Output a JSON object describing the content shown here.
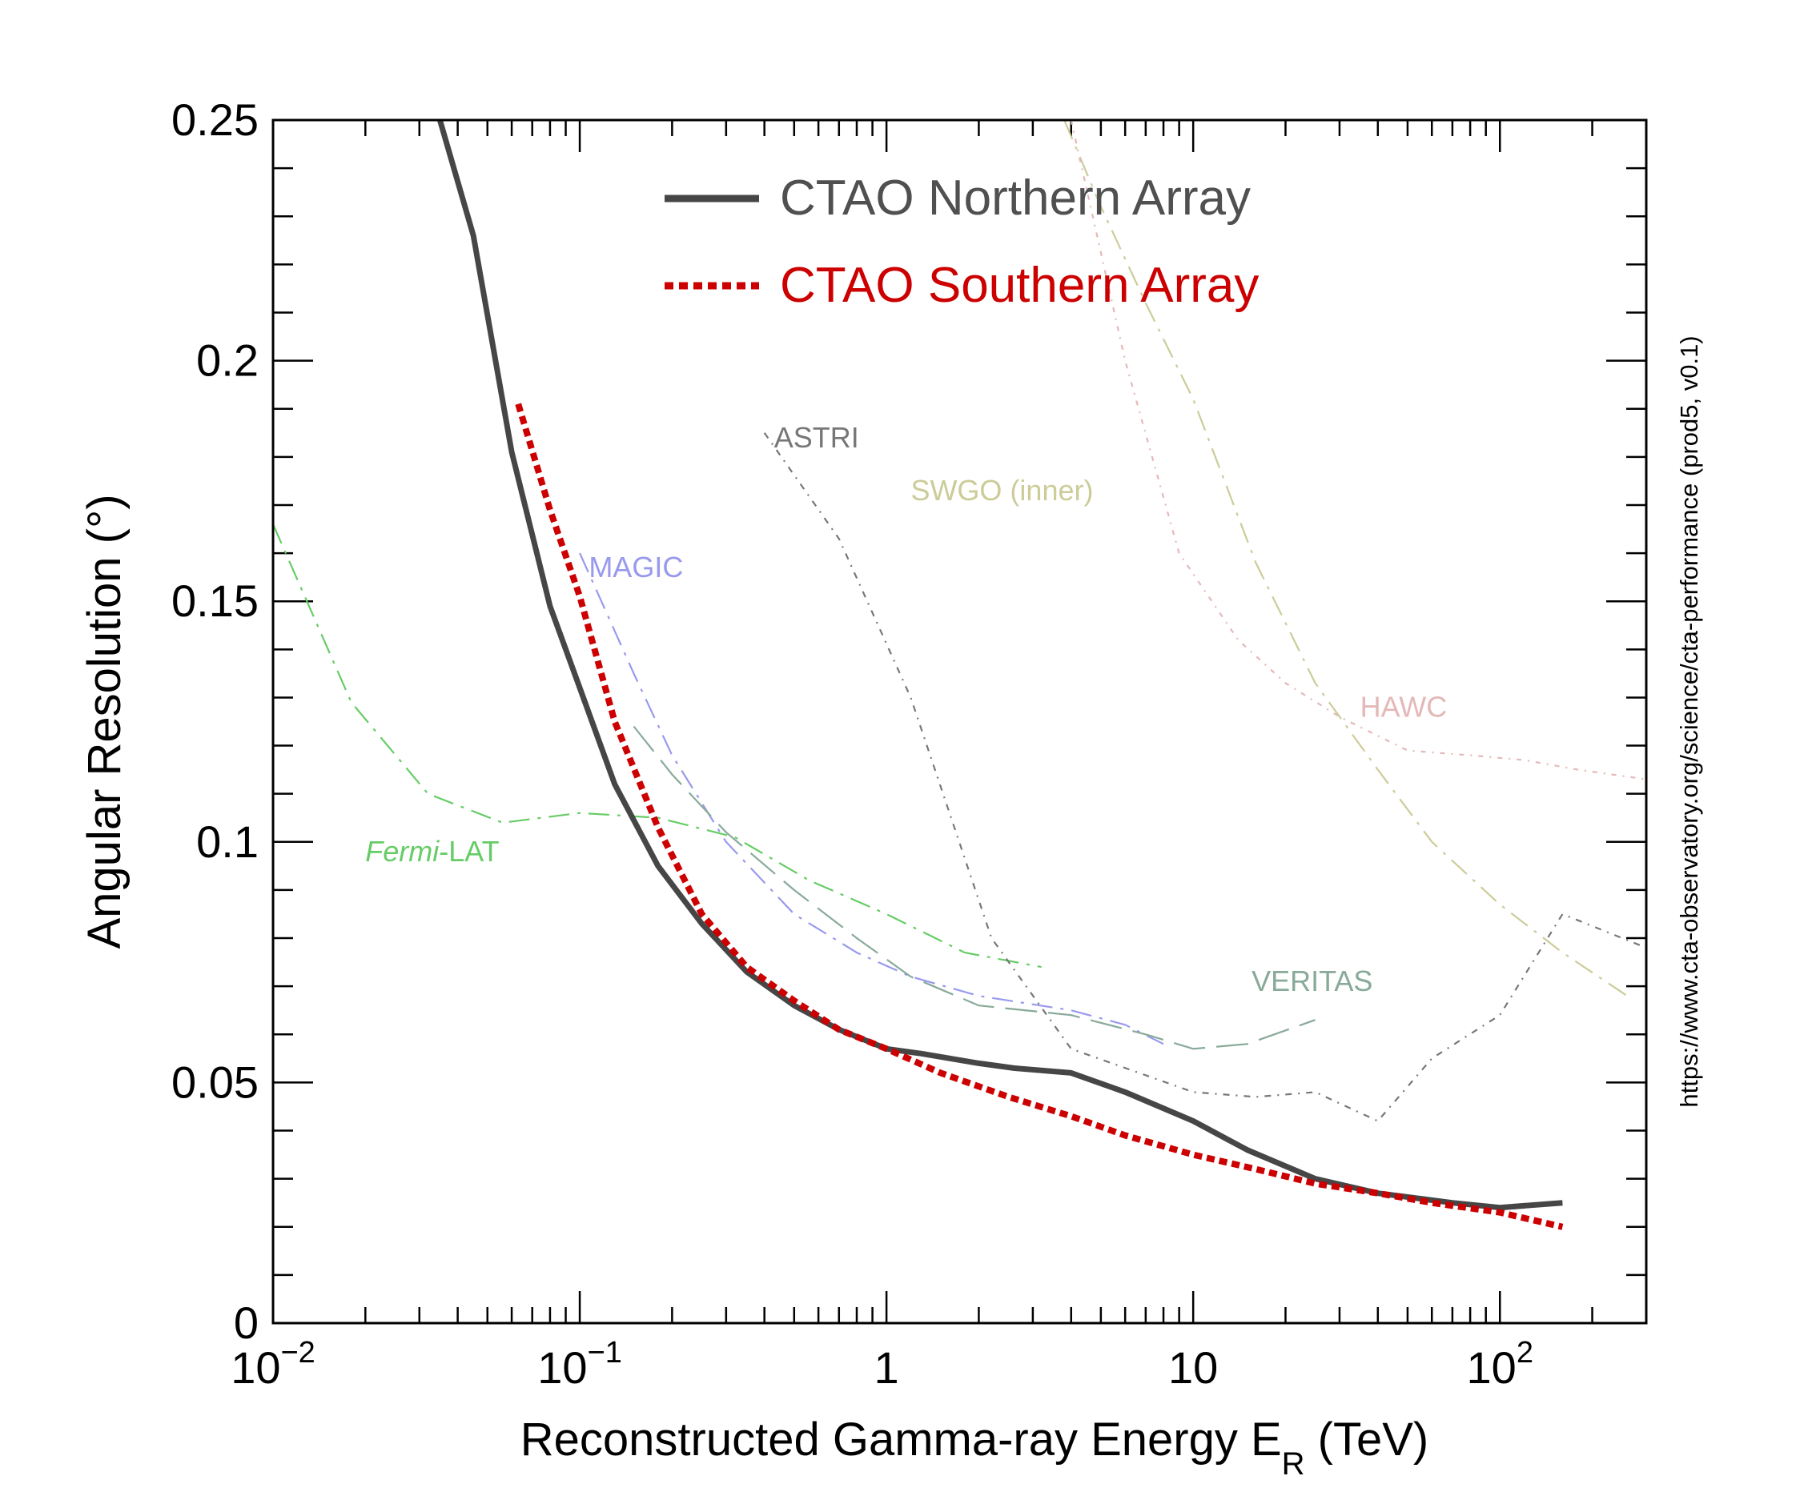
{
  "chart_data": {
    "type": "line",
    "xscale": "log",
    "xlim": [
      0.01,
      300
    ],
    "ylim": [
      0,
      0.25
    ],
    "xlabel": "Reconstructed Gamma-ray Energy E",
    "xlabel_sub": "R",
    "xlabel_unit": "(TeV)",
    "ylabel": "Angular Resolution (°)",
    "side_note": "https://www.cta-observatory.org/science/cta-performance (prod5, v0.1)",
    "x_ticks": [
      {
        "value": 0.01,
        "base": "10",
        "exp": "−2"
      },
      {
        "value": 0.1,
        "base": "10",
        "exp": "−1"
      },
      {
        "value": 1,
        "base": "1",
        "exp": ""
      },
      {
        "value": 10,
        "base": "10",
        "exp": ""
      },
      {
        "value": 100,
        "base": "10",
        "exp": "2"
      }
    ],
    "y_ticks": [
      {
        "value": 0,
        "label": "0"
      },
      {
        "value": 0.05,
        "label": "0.05"
      },
      {
        "value": 0.1,
        "label": "0.1"
      },
      {
        "value": 0.15,
        "label": "0.15"
      },
      {
        "value": 0.2,
        "label": "0.2"
      },
      {
        "value": 0.25,
        "label": "0.25"
      }
    ],
    "series": [
      {
        "name": "Fermi-LAT",
        "color": "#66cc66",
        "dash": "26 10 4 10",
        "width": 2.2,
        "x": [
          0.01,
          0.018,
          0.032,
          0.056,
          0.1,
          0.18,
          0.32,
          0.56,
          1.0,
          1.8,
          3.2
        ],
        "y": [
          0.166,
          0.129,
          0.11,
          0.104,
          0.106,
          0.105,
          0.101,
          0.092,
          0.085,
          0.077,
          0.074
        ]
      },
      {
        "name": "MAGIC",
        "color": "#9999ee",
        "dash": "26 10 4 10",
        "width": 2.2,
        "x": [
          0.1,
          0.15,
          0.2,
          0.3,
          0.5,
          0.8,
          1.2,
          2,
          4,
          6,
          8
        ],
        "y": [
          0.16,
          0.135,
          0.118,
          0.1,
          0.085,
          0.077,
          0.072,
          0.068,
          0.065,
          0.062,
          0.058
        ]
      },
      {
        "name": "VERITAS",
        "color": "#88aa99",
        "dash": "40 14",
        "width": 2.2,
        "x": [
          0.15,
          0.2,
          0.3,
          0.5,
          0.8,
          1.2,
          2,
          4,
          7,
          10,
          15,
          25
        ],
        "y": [
          0.124,
          0.114,
          0.102,
          0.09,
          0.08,
          0.072,
          0.066,
          0.064,
          0.06,
          0.057,
          0.058,
          0.063
        ]
      },
      {
        "name": "ASTRI",
        "color": "#777777",
        "dash": "8 8 2 8",
        "width": 2.2,
        "x": [
          0.4,
          0.7,
          1.2,
          2.2,
          4,
          10,
          16,
          25,
          40,
          60,
          100,
          160,
          300
        ],
        "y": [
          0.185,
          0.163,
          0.13,
          0.08,
          0.057,
          0.048,
          0.047,
          0.048,
          0.042,
          0.055,
          0.064,
          0.085,
          0.078
        ]
      },
      {
        "name": "SWGO (inner)",
        "color": "#cccc99",
        "dash": "26 10 4 10",
        "width": 2.2,
        "x": [
          3.8,
          5,
          7,
          10,
          16,
          25,
          40,
          60,
          100,
          160,
          260
        ],
        "y": [
          0.25,
          0.232,
          0.212,
          0.192,
          0.158,
          0.133,
          0.115,
          0.1,
          0.087,
          0.077,
          0.068
        ]
      },
      {
        "name": "HAWC",
        "color": "#e4b8b8",
        "dash": "6 8 2 8",
        "width": 2.2,
        "x": [
          4,
          6,
          9,
          14,
          20,
          30,
          50,
          80,
          120,
          180,
          300
        ],
        "y": [
          0.25,
          0.2,
          0.16,
          0.142,
          0.133,
          0.126,
          0.119,
          0.118,
          0.117,
          0.115,
          0.113
        ]
      },
      {
        "name": "CTAO Northern Array",
        "color": "#464646",
        "dash": "",
        "width": 7,
        "x": [
          0.035,
          0.045,
          0.06,
          0.08,
          0.1,
          0.13,
          0.18,
          0.25,
          0.35,
          0.5,
          0.7,
          1.0,
          1.3,
          2,
          2.6,
          4,
          6,
          10,
          15,
          25,
          40,
          70,
          100,
          160
        ],
        "y": [
          0.25,
          0.226,
          0.181,
          0.149,
          0.132,
          0.112,
          0.095,
          0.083,
          0.073,
          0.066,
          0.061,
          0.057,
          0.056,
          0.054,
          0.053,
          0.052,
          0.048,
          0.042,
          0.036,
          0.03,
          0.027,
          0.025,
          0.024,
          0.025
        ]
      },
      {
        "name": "CTAO Southern Array",
        "color": "#cc0000",
        "dash": "10 6",
        "width": 8,
        "x": [
          0.063,
          0.08,
          0.1,
          0.13,
          0.18,
          0.25,
          0.35,
          0.5,
          0.7,
          1.0,
          1.5,
          2.5,
          4,
          6,
          10,
          16,
          25,
          40,
          60,
          100,
          160
        ],
        "y": [
          0.191,
          0.169,
          0.151,
          0.125,
          0.103,
          0.085,
          0.074,
          0.067,
          0.061,
          0.057,
          0.052,
          0.047,
          0.043,
          0.039,
          0.035,
          0.032,
          0.029,
          0.027,
          0.025,
          0.023,
          0.02
        ]
      }
    ],
    "annotations": [
      {
        "text": "ASTRI",
        "color": "#777777",
        "x": 0.43,
        "y": 0.182,
        "italic_part": ""
      },
      {
        "text": "SWGO (inner)",
        "color": "#cccc99",
        "x": 1.2,
        "y": 0.171,
        "italic_part": ""
      },
      {
        "text": "MAGIC",
        "color": "#9999ee",
        "x": 0.107,
        "y": 0.155,
        "italic_part": ""
      },
      {
        "text": "HAWC",
        "color": "#e4b8b8",
        "x": 35,
        "y": 0.126,
        "italic_part": ""
      },
      {
        "text": "VERITAS",
        "color": "#88aa99",
        "x": 15.5,
        "y": 0.069,
        "italic_part": ""
      },
      {
        "text": "-LAT",
        "color": "#66cc66",
        "x": 0.02,
        "y": 0.096,
        "italic_part": "Fermi"
      }
    ],
    "legend": {
      "placement": "top-center",
      "entries": [
        {
          "label": "CTAO Northern Array",
          "color": "#464646",
          "text_color": "#505050",
          "dash": ""
        },
        {
          "label": "CTAO Southern Array",
          "color": "#cc0000",
          "text_color": "#cc0000",
          "dash": "dotted"
        }
      ]
    }
  }
}
